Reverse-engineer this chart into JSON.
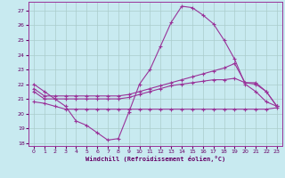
{
  "bg_color": "#c8eaf0",
  "grid_color": "#aacccc",
  "line_color": "#993399",
  "xlabel": "Windchill (Refroidissement éolien,°C)",
  "xlim": [
    -0.5,
    23.5
  ],
  "ylim": [
    17.8,
    27.6
  ],
  "yticks": [
    18,
    19,
    20,
    21,
    22,
    23,
    24,
    25,
    26,
    27
  ],
  "xticks": [
    0,
    1,
    2,
    3,
    4,
    5,
    6,
    7,
    8,
    9,
    10,
    11,
    12,
    13,
    14,
    15,
    16,
    17,
    18,
    19,
    20,
    21,
    22,
    23
  ],
  "curve1_x": [
    0,
    1,
    2,
    3,
    4,
    5,
    6,
    7,
    8,
    9,
    10,
    11,
    12,
    13,
    14,
    15,
    16,
    17,
    18,
    19,
    20,
    21,
    22,
    23
  ],
  "curve1_y": [
    22.0,
    21.5,
    21.0,
    20.5,
    19.5,
    19.2,
    18.7,
    18.2,
    18.3,
    20.1,
    22.0,
    23.0,
    24.6,
    26.2,
    27.3,
    27.2,
    26.7,
    26.1,
    25.0,
    23.7,
    22.0,
    21.5,
    20.8,
    20.5
  ],
  "curve2_x": [
    0,
    1,
    2,
    3,
    4,
    5,
    6,
    7,
    8,
    9,
    10,
    11,
    12,
    13,
    14,
    15,
    16,
    17,
    18,
    19,
    20,
    21,
    22,
    23
  ],
  "curve2_y": [
    21.7,
    21.2,
    21.2,
    21.2,
    21.2,
    21.2,
    21.2,
    21.2,
    21.2,
    21.3,
    21.5,
    21.7,
    21.9,
    22.1,
    22.3,
    22.5,
    22.7,
    22.9,
    23.1,
    23.4,
    22.1,
    22.1,
    21.5,
    20.5
  ],
  "curve3_x": [
    0,
    1,
    2,
    3,
    4,
    5,
    6,
    7,
    8,
    9,
    10,
    11,
    12,
    13,
    14,
    15,
    16,
    17,
    18,
    19,
    20,
    21,
    22,
    23
  ],
  "curve3_y": [
    21.5,
    21.0,
    21.0,
    21.0,
    21.0,
    21.0,
    21.0,
    21.0,
    21.0,
    21.1,
    21.3,
    21.5,
    21.7,
    21.9,
    22.0,
    22.1,
    22.2,
    22.3,
    22.3,
    22.4,
    22.1,
    22.0,
    21.5,
    20.5
  ],
  "curve4_x": [
    0,
    1,
    2,
    3,
    4,
    5,
    6,
    7,
    8,
    9,
    10,
    11,
    12,
    13,
    14,
    15,
    16,
    17,
    18,
    19,
    20,
    21,
    22,
    23
  ],
  "curve4_y": [
    20.8,
    20.7,
    20.5,
    20.3,
    20.3,
    20.3,
    20.3,
    20.3,
    20.3,
    20.3,
    20.3,
    20.3,
    20.3,
    20.3,
    20.3,
    20.3,
    20.3,
    20.3,
    20.3,
    20.3,
    20.3,
    20.3,
    20.3,
    20.4
  ]
}
